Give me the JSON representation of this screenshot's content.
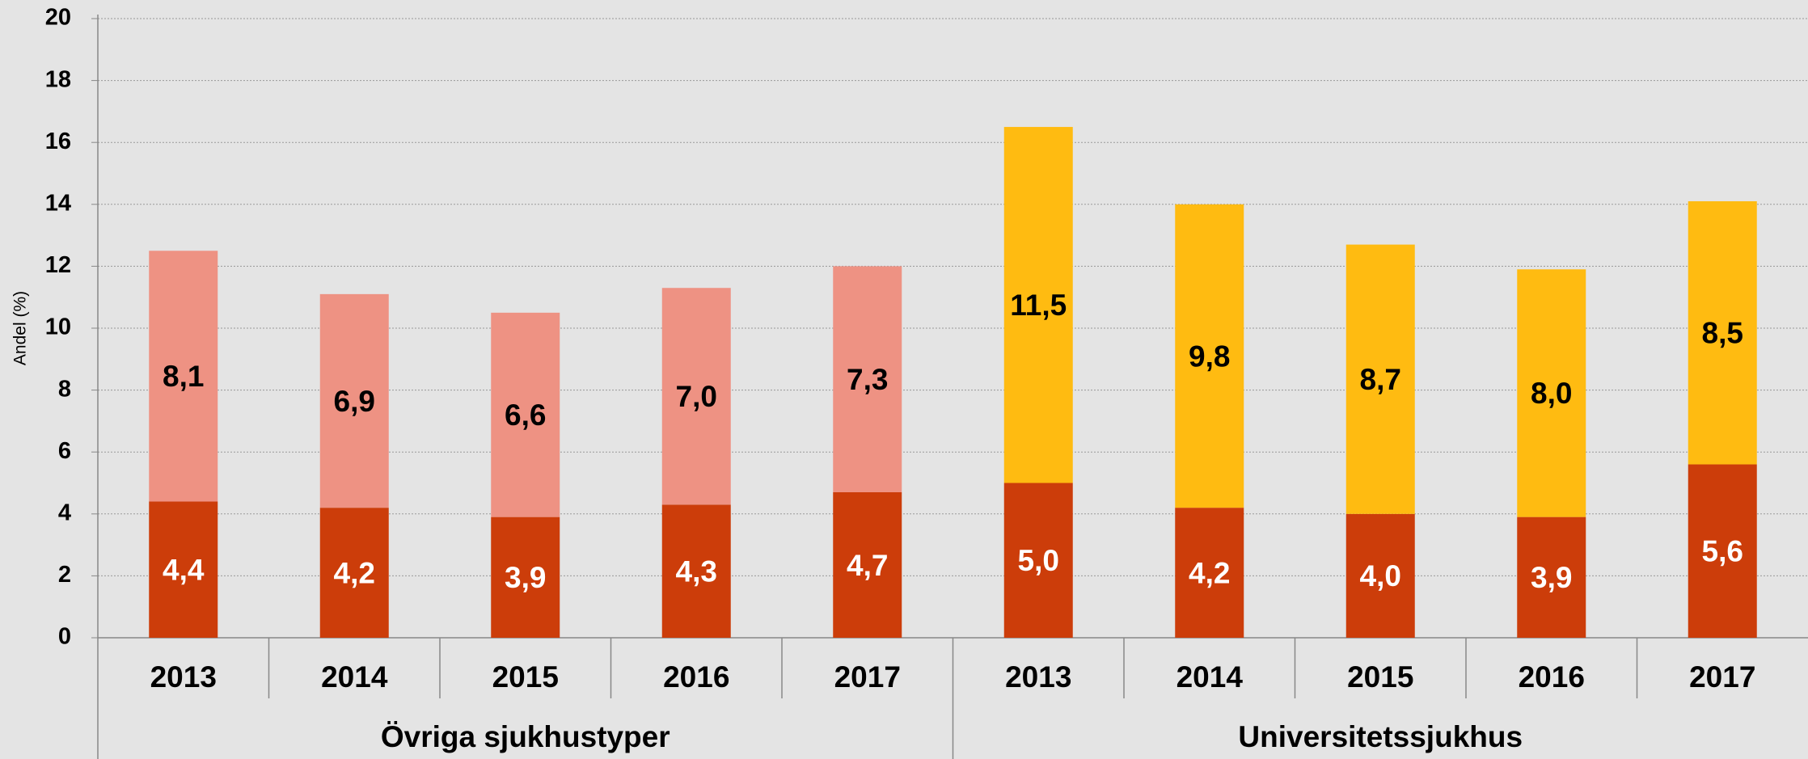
{
  "chart_data": {
    "type": "stacked_bar",
    "y_label": "Andel (%)",
    "groups": [
      {
        "name": "Övriga sjukhustyper",
        "categories": [
          "2013",
          "2014",
          "2015",
          "2016",
          "2017"
        ]
      },
      {
        "name": "Universitetssjukhus",
        "categories": [
          "2013",
          "2014",
          "2015",
          "2016",
          "2017"
        ]
      }
    ],
    "series": [
      {
        "colors": [
          "#cc3d0a",
          "#cc3d0a",
          "#cc3d0a",
          "#cc3d0a",
          "#cc3d0a",
          "#cc3d0a",
          "#cc3d0a",
          "#cc3d0a",
          "#cc3d0a",
          "#cc3d0a"
        ],
        "label_color": "#ffffff",
        "values": [
          4.4,
          4.2,
          3.9,
          4.3,
          4.7,
          5.0,
          4.2,
          4.0,
          3.9,
          5.6
        ],
        "value_labels": [
          "4,4",
          "4,2",
          "3,9",
          "4,3",
          "4,7",
          "5,0",
          "4,2",
          "4,0",
          "3,9",
          "5,6"
        ]
      },
      {
        "colors": [
          "#ee9283",
          "#ee9283",
          "#ee9283",
          "#ee9283",
          "#ee9283",
          "#ffbb11",
          "#ffbb11",
          "#ffbb11",
          "#ffbb11",
          "#ffbb11"
        ],
        "label_color": "#000000",
        "values": [
          8.1,
          6.9,
          6.6,
          7.0,
          7.3,
          11.5,
          9.8,
          8.7,
          8.0,
          8.5
        ],
        "value_labels": [
          "8,1",
          "6,9",
          "6,6",
          "7,0",
          "7,3",
          "11,5",
          "9,8",
          "8,7",
          "8,0",
          "8,5"
        ]
      }
    ],
    "ylim": [
      0,
      20
    ],
    "yticks": [
      0,
      2,
      4,
      6,
      8,
      10,
      12,
      14,
      16,
      18,
      20
    ],
    "grid": true
  }
}
